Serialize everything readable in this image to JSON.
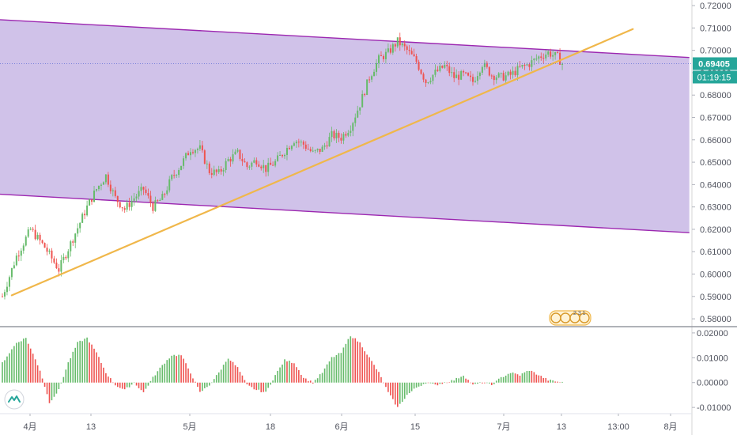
{
  "chart_data": [
    {
      "type": "candlestick",
      "title": "",
      "x_ticks": [
        "4月",
        "13",
        "5月",
        "18",
        "6月",
        "15",
        "7月",
        "13",
        "13:00",
        "8月"
      ],
      "y_ticks": [
        "0.72000",
        "0.71000",
        "0.70000",
        "0.69000",
        "0.68000",
        "0.67000",
        "0.66000",
        "0.65000",
        "0.64000",
        "0.63000",
        "0.62000",
        "0.61000",
        "0.60000",
        "0.59000",
        "0.58000"
      ],
      "ylim": [
        0.5765,
        0.7225
      ],
      "price_path": [
        [
          0,
          0.59
        ],
        [
          3,
          0.608
        ],
        [
          6,
          0.62
        ],
        [
          9,
          0.612
        ],
        [
          12,
          0.602
        ],
        [
          15,
          0.616
        ],
        [
          18,
          0.63
        ],
        [
          20,
          0.638
        ],
        [
          22,
          0.644
        ],
        [
          24,
          0.634
        ],
        [
          26,
          0.629
        ],
        [
          28,
          0.634
        ],
        [
          30,
          0.638
        ],
        [
          32,
          0.63
        ],
        [
          34,
          0.634
        ],
        [
          36,
          0.643
        ],
        [
          38,
          0.649
        ],
        [
          40,
          0.656
        ],
        [
          42,
          0.656
        ],
        [
          44,
          0.646
        ],
        [
          46,
          0.645
        ],
        [
          48,
          0.651
        ],
        [
          50,
          0.654
        ],
        [
          52,
          0.648
        ],
        [
          54,
          0.651
        ],
        [
          56,
          0.647
        ],
        [
          58,
          0.65
        ],
        [
          60,
          0.655
        ],
        [
          62,
          0.66
        ],
        [
          64,
          0.658
        ],
        [
          66,
          0.654
        ],
        [
          68,
          0.656
        ],
        [
          70,
          0.662
        ],
        [
          72,
          0.661
        ],
        [
          74,
          0.666
        ],
        [
          76,
          0.676
        ],
        [
          78,
          0.688
        ],
        [
          80,
          0.696
        ],
        [
          82,
          0.699
        ],
        [
          84,
          0.704
        ],
        [
          86,
          0.7
        ],
        [
          88,
          0.695
        ],
        [
          90,
          0.686
        ],
        [
          92,
          0.69
        ],
        [
          94,
          0.693
        ],
        [
          96,
          0.688
        ],
        [
          98,
          0.689
        ],
        [
          100,
          0.686
        ],
        [
          102,
          0.694
        ],
        [
          104,
          0.689
        ],
        [
          106,
          0.688
        ],
        [
          108,
          0.689
        ],
        [
          110,
          0.692
        ],
        [
          112,
          0.694
        ],
        [
          114,
          0.697
        ],
        [
          116,
          0.699
        ],
        [
          118,
          0.697
        ],
        [
          119,
          0.694
        ]
      ],
      "channel": {
        "upper": [
          [
            0,
            0.7137
          ],
          [
            146,
            0.6968
          ]
        ],
        "lower": [
          [
            0,
            0.6357
          ],
          [
            146,
            0.6185
          ]
        ],
        "fill_color": "#b39ddb",
        "line_color": "#9c27b0"
      },
      "trend_line": {
        "points": [
          [
            2,
            0.5905
          ],
          [
            134,
            0.7095
          ]
        ],
        "color": "#f0b74a"
      },
      "current_price": "0.69405",
      "countdown": "01:19:15",
      "price_tag_color": "#26a69a"
    },
    {
      "type": "histogram",
      "y_ticks": [
        "0.02000",
        "0.01000",
        "0.00000",
        "-0.01000"
      ],
      "ylim": [
        -0.0125,
        0.0222
      ],
      "oscillator_path": [
        [
          0,
          0.008
        ],
        [
          3,
          0.016
        ],
        [
          5,
          0.018
        ],
        [
          8,
          0.005
        ],
        [
          10,
          -0.008
        ],
        [
          12,
          -0.003
        ],
        [
          14,
          0.008
        ],
        [
          16,
          0.016
        ],
        [
          18,
          0.018
        ],
        [
          20,
          0.012
        ],
        [
          22,
          0.004
        ],
        [
          24,
          -0.001
        ],
        [
          26,
          -0.003
        ],
        [
          28,
          0.0
        ],
        [
          30,
          -0.004
        ],
        [
          32,
          0.002
        ],
        [
          34,
          0.007
        ],
        [
          36,
          0.011
        ],
        [
          38,
          0.011
        ],
        [
          40,
          0.004
        ],
        [
          42,
          -0.004
        ],
        [
          44,
          -0.001
        ],
        [
          46,
          0.004
        ],
        [
          48,
          0.01
        ],
        [
          50,
          0.006
        ],
        [
          52,
          -0.001
        ],
        [
          54,
          -0.003
        ],
        [
          56,
          -0.004
        ],
        [
          58,
          0.003
        ],
        [
          60,
          0.009
        ],
        [
          62,
          0.008
        ],
        [
          64,
          0.002
        ],
        [
          66,
          0.0
        ],
        [
          68,
          0.004
        ],
        [
          70,
          0.01
        ],
        [
          72,
          0.012
        ],
        [
          74,
          0.019
        ],
        [
          76,
          0.016
        ],
        [
          78,
          0.01
        ],
        [
          80,
          0.004
        ],
        [
          82,
          -0.004
        ],
        [
          84,
          -0.01
        ],
        [
          86,
          -0.005
        ],
        [
          88,
          -0.002
        ],
        [
          90,
          0.0
        ],
        [
          92,
          -0.001
        ],
        [
          94,
          0.0
        ],
        [
          96,
          0.001
        ],
        [
          98,
          0.003
        ],
        [
          100,
          -0.001
        ],
        [
          102,
          0.0
        ],
        [
          104,
          -0.001
        ],
        [
          106,
          0.002
        ],
        [
          108,
          0.004
        ],
        [
          110,
          0.003
        ],
        [
          112,
          0.005
        ],
        [
          114,
          0.003
        ],
        [
          116,
          0.001
        ],
        [
          119,
          0.0
        ]
      ]
    }
  ],
  "watermark_text": "2 3 1"
}
